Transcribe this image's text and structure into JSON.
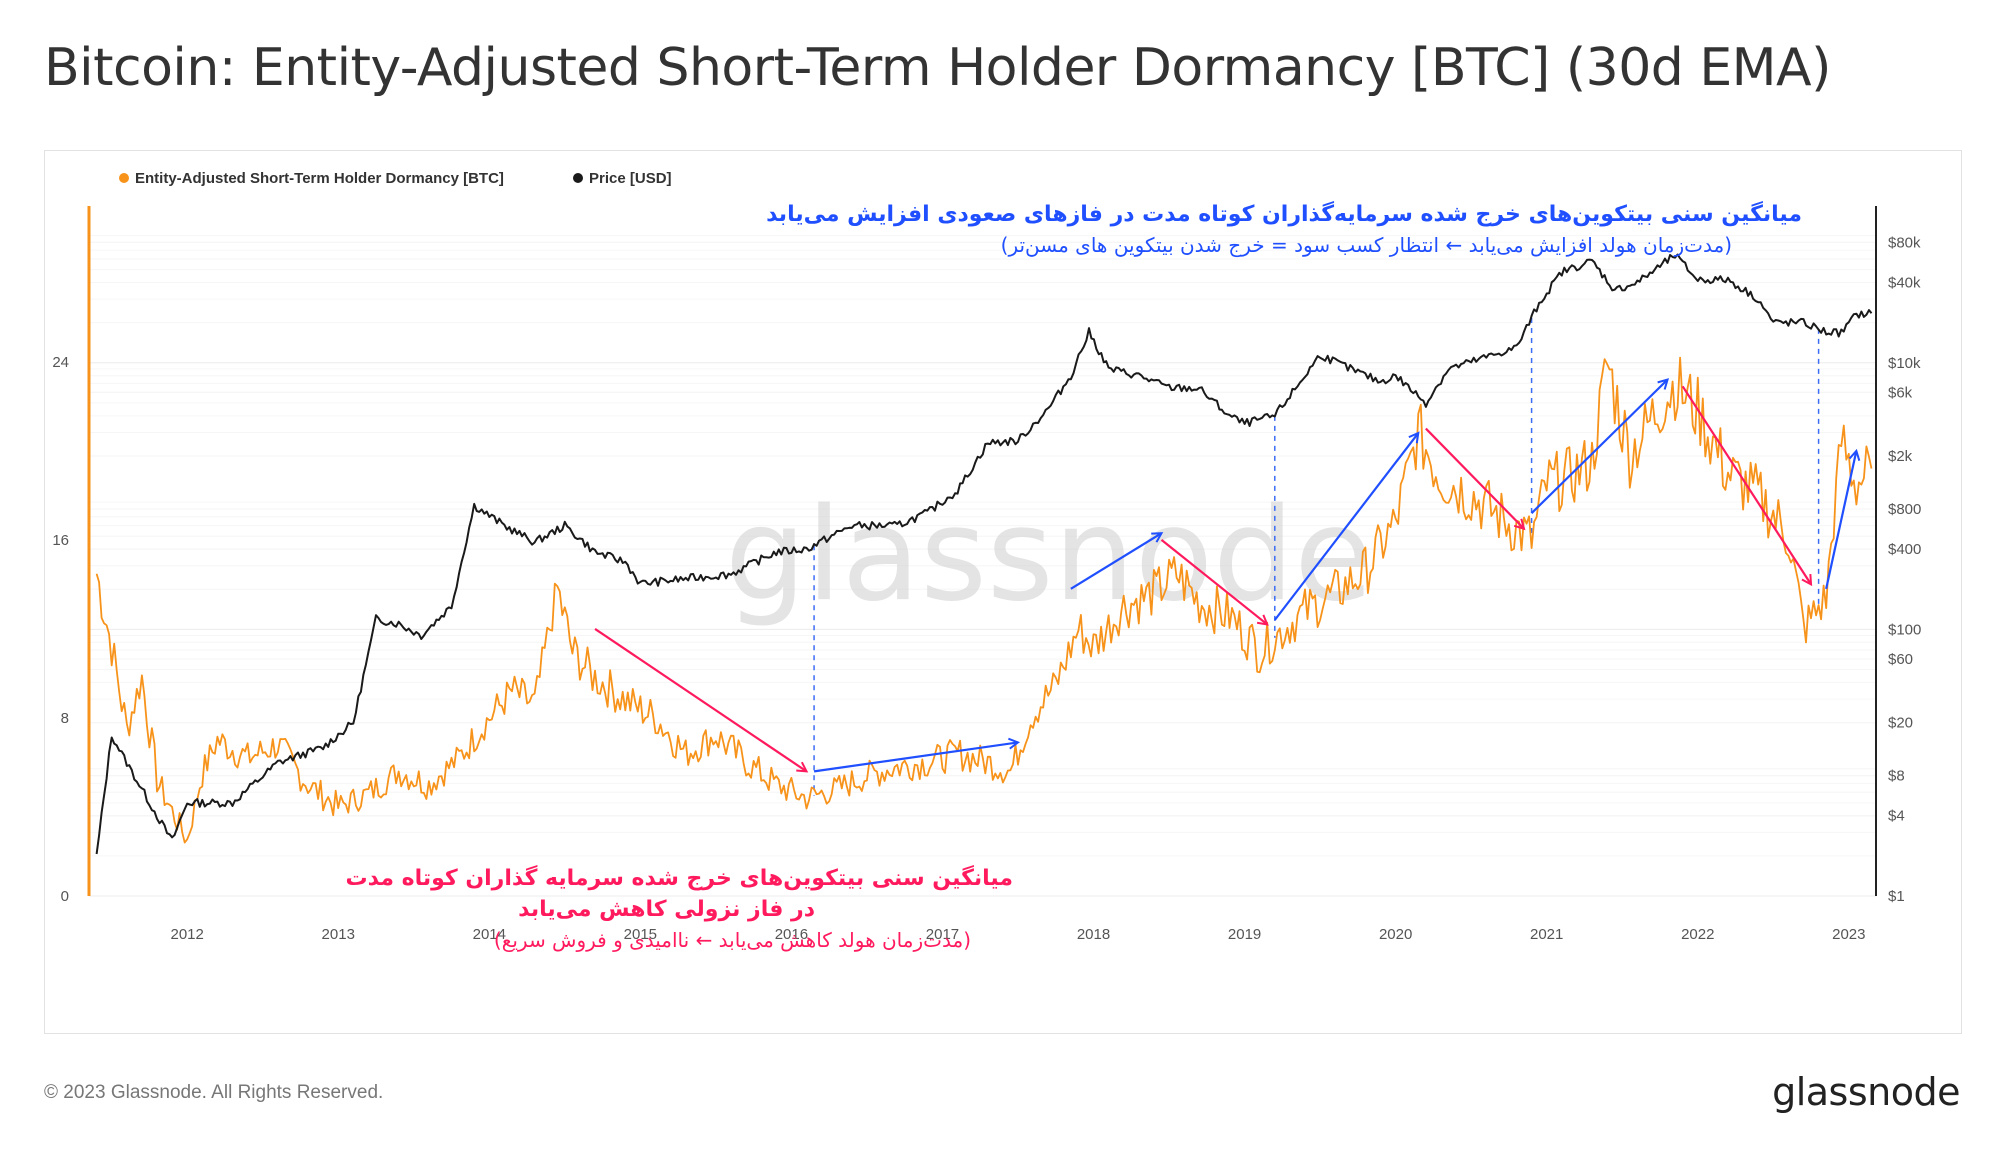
{
  "title": "Bitcoin: Entity-Adjusted Short-Term Holder Dormancy [BTC] (30d EMA)",
  "footer": {
    "copyright": "© 2023 Glassnode. All Rights Reserved.",
    "logo": "glassnode"
  },
  "watermark": "glassnode",
  "colors": {
    "dormancy": "#f7931a",
    "price": "#1a1a1a",
    "up_arrow": "#1f4fff",
    "down_arrow": "#ff1a5e",
    "guide": "#3b6cf5"
  },
  "chart_data": {
    "type": "line",
    "title": "Bitcoin: Entity-Adjusted Short-Term Holder Dormancy [BTC] (30d EMA)",
    "x_range": [
      "2011-06",
      "2023-03"
    ],
    "x_ticks": [
      "2012",
      "2013",
      "2014",
      "2015",
      "2016",
      "2017",
      "2018",
      "2019",
      "2020",
      "2021",
      "2022",
      "2023"
    ],
    "y_left": {
      "ticks": [
        "0",
        "8",
        "16",
        "24"
      ],
      "range": [
        0,
        31
      ]
    },
    "y_right": {
      "scale": "log",
      "ticks": [
        "$1",
        "$4",
        "$8",
        "$20",
        "$60",
        "$100",
        "$400",
        "$800",
        "$2k",
        "$6k",
        "$10k",
        "$40k",
        "$80k"
      ],
      "tick_values": [
        1,
        4,
        8,
        20,
        60,
        100,
        400,
        800,
        2000,
        6000,
        10000,
        40000,
        80000
      ],
      "range": [
        1,
        150000
      ]
    },
    "legend": {
      "position": "top-left",
      "items": [
        "Entity-Adjusted Short-Term Holder Dormancy [BTC]",
        "Price [USD]"
      ]
    },
    "series": [
      {
        "name": "Entity-Adjusted Short-Term Holder Dormancy [BTC]",
        "axis": "left",
        "points": [
          [
            "2011.4",
            14.5
          ],
          [
            "2011.5",
            11.2
          ],
          [
            "2011.6",
            7.5
          ],
          [
            "2011.7",
            9.8
          ],
          [
            "2011.8",
            5.2
          ],
          [
            "2011.9",
            3.8
          ],
          [
            "2012.0",
            2.5
          ],
          [
            "2012.1",
            5.5
          ],
          [
            "2012.2",
            7.0
          ],
          [
            "2012.4",
            6.2
          ],
          [
            "2012.6",
            6.8
          ],
          [
            "2012.8",
            5.0
          ],
          [
            "2013.0",
            4.0
          ],
          [
            "2013.2",
            4.6
          ],
          [
            "2013.4",
            5.6
          ],
          [
            "2013.6",
            5.0
          ],
          [
            "2013.8",
            6.2
          ],
          [
            "2014.0",
            8.0
          ],
          [
            "2014.15",
            9.2
          ],
          [
            "2014.3",
            8.6
          ],
          [
            "2014.45",
            13.8
          ],
          [
            "2014.55",
            11.0
          ],
          [
            "2014.7",
            9.8
          ],
          [
            "2014.9",
            8.8
          ],
          [
            "2015.1",
            8.0
          ],
          [
            "2015.3",
            6.4
          ],
          [
            "2015.5",
            7.2
          ],
          [
            "2015.7",
            6.0
          ],
          [
            "2015.9",
            5.0
          ],
          [
            "2016.1",
            4.4
          ],
          [
            "2016.3",
            4.8
          ],
          [
            "2016.5",
            5.4
          ],
          [
            "2016.7",
            5.8
          ],
          [
            "2016.9",
            6.0
          ],
          [
            "2017.1",
            6.4
          ],
          [
            "2017.3",
            6.0
          ],
          [
            "2017.45",
            5.6
          ],
          [
            "2017.6",
            8.2
          ],
          [
            "2017.75",
            9.5
          ],
          [
            "2017.9",
            12.0
          ],
          [
            "2018.0",
            11.2
          ],
          [
            "2018.2",
            13.0
          ],
          [
            "2018.4",
            13.6
          ],
          [
            "2018.55",
            14.5
          ],
          [
            "2018.7",
            13.2
          ],
          [
            "2018.9",
            12.6
          ],
          [
            "2019.1",
            11.0
          ],
          [
            "2019.2",
            11.6
          ],
          [
            "2019.4",
            12.8
          ],
          [
            "2019.6",
            13.6
          ],
          [
            "2019.8",
            14.6
          ],
          [
            "2020.0",
            16.8
          ],
          [
            "2020.15",
            20.8
          ],
          [
            "2020.3",
            18.8
          ],
          [
            "2020.5",
            18.0
          ],
          [
            "2020.7",
            17.0
          ],
          [
            "2020.9",
            16.0
          ],
          [
            "2021.0",
            18.5
          ],
          [
            "2021.15",
            18.8
          ],
          [
            "2021.3",
            19.5
          ],
          [
            "2021.4",
            24.0
          ],
          [
            "2021.55",
            19.8
          ],
          [
            "2021.7",
            21.5
          ],
          [
            "2021.85",
            23.0
          ],
          [
            "2022.0",
            21.8
          ],
          [
            "2022.2",
            19.0
          ],
          [
            "2022.4",
            18.0
          ],
          [
            "2022.6",
            16.2
          ],
          [
            "2022.7",
            12.0
          ],
          [
            "2022.85",
            13.4
          ],
          [
            "2022.95",
            20.5
          ],
          [
            "2023.05",
            18.5
          ],
          [
            "2023.15",
            19.2
          ]
        ]
      },
      {
        "name": "Price [USD]",
        "axis": "right",
        "points": [
          [
            "2011.4",
            2
          ],
          [
            "2011.5",
            16
          ],
          [
            "2011.6",
            10
          ],
          [
            "2011.8",
            4
          ],
          [
            "2011.9",
            2.6
          ],
          [
            "2012.0",
            5
          ],
          [
            "2012.3",
            5
          ],
          [
            "2012.6",
            10
          ],
          [
            "2012.9",
            13
          ],
          [
            "2013.1",
            20
          ],
          [
            "2013.25",
            120
          ],
          [
            "2013.4",
            110
          ],
          [
            "2013.55",
            90
          ],
          [
            "2013.75",
            150
          ],
          [
            "2013.9",
            850
          ],
          [
            "2014.1",
            600
          ],
          [
            "2014.3",
            450
          ],
          [
            "2014.5",
            600
          ],
          [
            "2014.7",
            380
          ],
          [
            "2014.9",
            320
          ],
          [
            "2015.0",
            220
          ],
          [
            "2015.3",
            240
          ],
          [
            "2015.6",
            260
          ],
          [
            "2015.9",
            380
          ],
          [
            "2016.1",
            400
          ],
          [
            "2016.4",
            600
          ],
          [
            "2016.7",
            600
          ],
          [
            "2016.9",
            750
          ],
          [
            "2017.1",
            1100
          ],
          [
            "2017.3",
            2500
          ],
          [
            "2017.5",
            2600
          ],
          [
            "2017.7",
            4500
          ],
          [
            "2017.85",
            8000
          ],
          [
            "2017.97",
            17000
          ],
          [
            "2018.1",
            9000
          ],
          [
            "2018.3",
            8000
          ],
          [
            "2018.5",
            6500
          ],
          [
            "2018.7",
            6400
          ],
          [
            "2018.9",
            4000
          ],
          [
            "2019.0",
            3500
          ],
          [
            "2019.2",
            4000
          ],
          [
            "2019.4",
            8000
          ],
          [
            "2019.5",
            11500
          ],
          [
            "2019.7",
            9000
          ],
          [
            "2019.9",
            7200
          ],
          [
            "2020.0",
            8000
          ],
          [
            "2020.2",
            5000
          ],
          [
            "2020.35",
            9000
          ],
          [
            "2020.6",
            11000
          ],
          [
            "2020.8",
            13000
          ],
          [
            "2020.95",
            28000
          ],
          [
            "2021.1",
            48000
          ],
          [
            "2021.3",
            58000
          ],
          [
            "2021.45",
            35000
          ],
          [
            "2021.6",
            40000
          ],
          [
            "2021.85",
            64000
          ],
          [
            "2022.0",
            42000
          ],
          [
            "2022.2",
            42000
          ],
          [
            "2022.4",
            30000
          ],
          [
            "2022.5",
            20000
          ],
          [
            "2022.7",
            20000
          ],
          [
            "2022.85",
            17000
          ],
          [
            "2022.95",
            16800
          ],
          [
            "2023.05",
            23000
          ],
          [
            "2023.15",
            23500
          ]
        ]
      }
    ],
    "guide_lines_years": [
      2016.15,
      2019.2,
      2020.9,
      2022.8
    ],
    "arrows_up": [
      [
        [
          2016.15,
          5.6
        ],
        [
          2017.5,
          6.9
        ]
      ],
      [
        [
          2017.85,
          13.8
        ],
        [
          2018.45,
          16.3
        ]
      ],
      [
        [
          2019.2,
          12.4
        ],
        [
          2020.15,
          20.8
        ]
      ],
      [
        [
          2020.9,
          17.2
        ],
        [
          2021.8,
          23.2
        ]
      ],
      [
        [
          2022.85,
          13.8
        ],
        [
          2023.05,
          20.0
        ]
      ]
    ],
    "arrows_down": [
      [
        [
          2014.7,
          12.0
        ],
        [
          2016.1,
          5.6
        ]
      ],
      [
        [
          2018.45,
          16.0
        ],
        [
          2019.15,
          12.2
        ]
      ],
      [
        [
          2020.2,
          21.0
        ],
        [
          2020.85,
          16.5
        ]
      ],
      [
        [
          2021.9,
          22.9
        ],
        [
          2022.75,
          14.0
        ]
      ]
    ],
    "annotations": {
      "up_title": "میانگین سنی بیتکوین‌های خرج شده سرمایه‌گذاران کوتاه مدت در فازهای صعودی افزایش می‌یابد",
      "up_sub": "(مدت‌زمان هولد افزایش می‌یابد ← انتظار کسب سود = خرج شدن بیتکوین های مسن‌تر)",
      "down_title_1": "میانگین سنی بیتکوین‌های خرج شده سرمایه گذاران کوتاه مدت",
      "down_title_2": "در فاز نزولی کاهش می‌یابد",
      "down_sub": "(مدت‌زمان هولد کاهش می‌یابد ← ناامیدی و فروش سریع)"
    }
  }
}
